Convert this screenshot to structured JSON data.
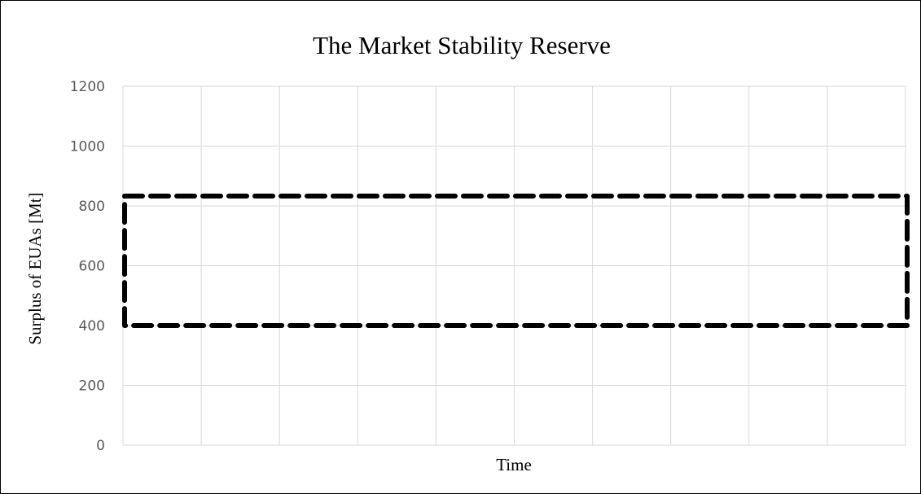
{
  "chart_data": {
    "type": "line",
    "title": "The Market Stability Reserve",
    "xlabel": "Time",
    "ylabel": "Surplus of EUAs [Mt]",
    "ylim": [
      0,
      1200
    ],
    "yticks": [
      0,
      200,
      400,
      600,
      800,
      1000,
      1200
    ],
    "x_gridline_count": 10,
    "grid": true,
    "legend": "none",
    "series": [
      {
        "style": "dashed",
        "color": "#000000",
        "points": [
          {
            "x": 0,
            "y": 833
          },
          {
            "x": 1,
            "y": 833
          },
          {
            "x": 1,
            "y": 400
          },
          {
            "x": 0,
            "y": 400
          },
          {
            "x": 0,
            "y": 833
          }
        ]
      }
    ],
    "colors": {
      "gridline": "#d9d9d9",
      "tick_label": "#595959",
      "series": "#000000"
    }
  }
}
